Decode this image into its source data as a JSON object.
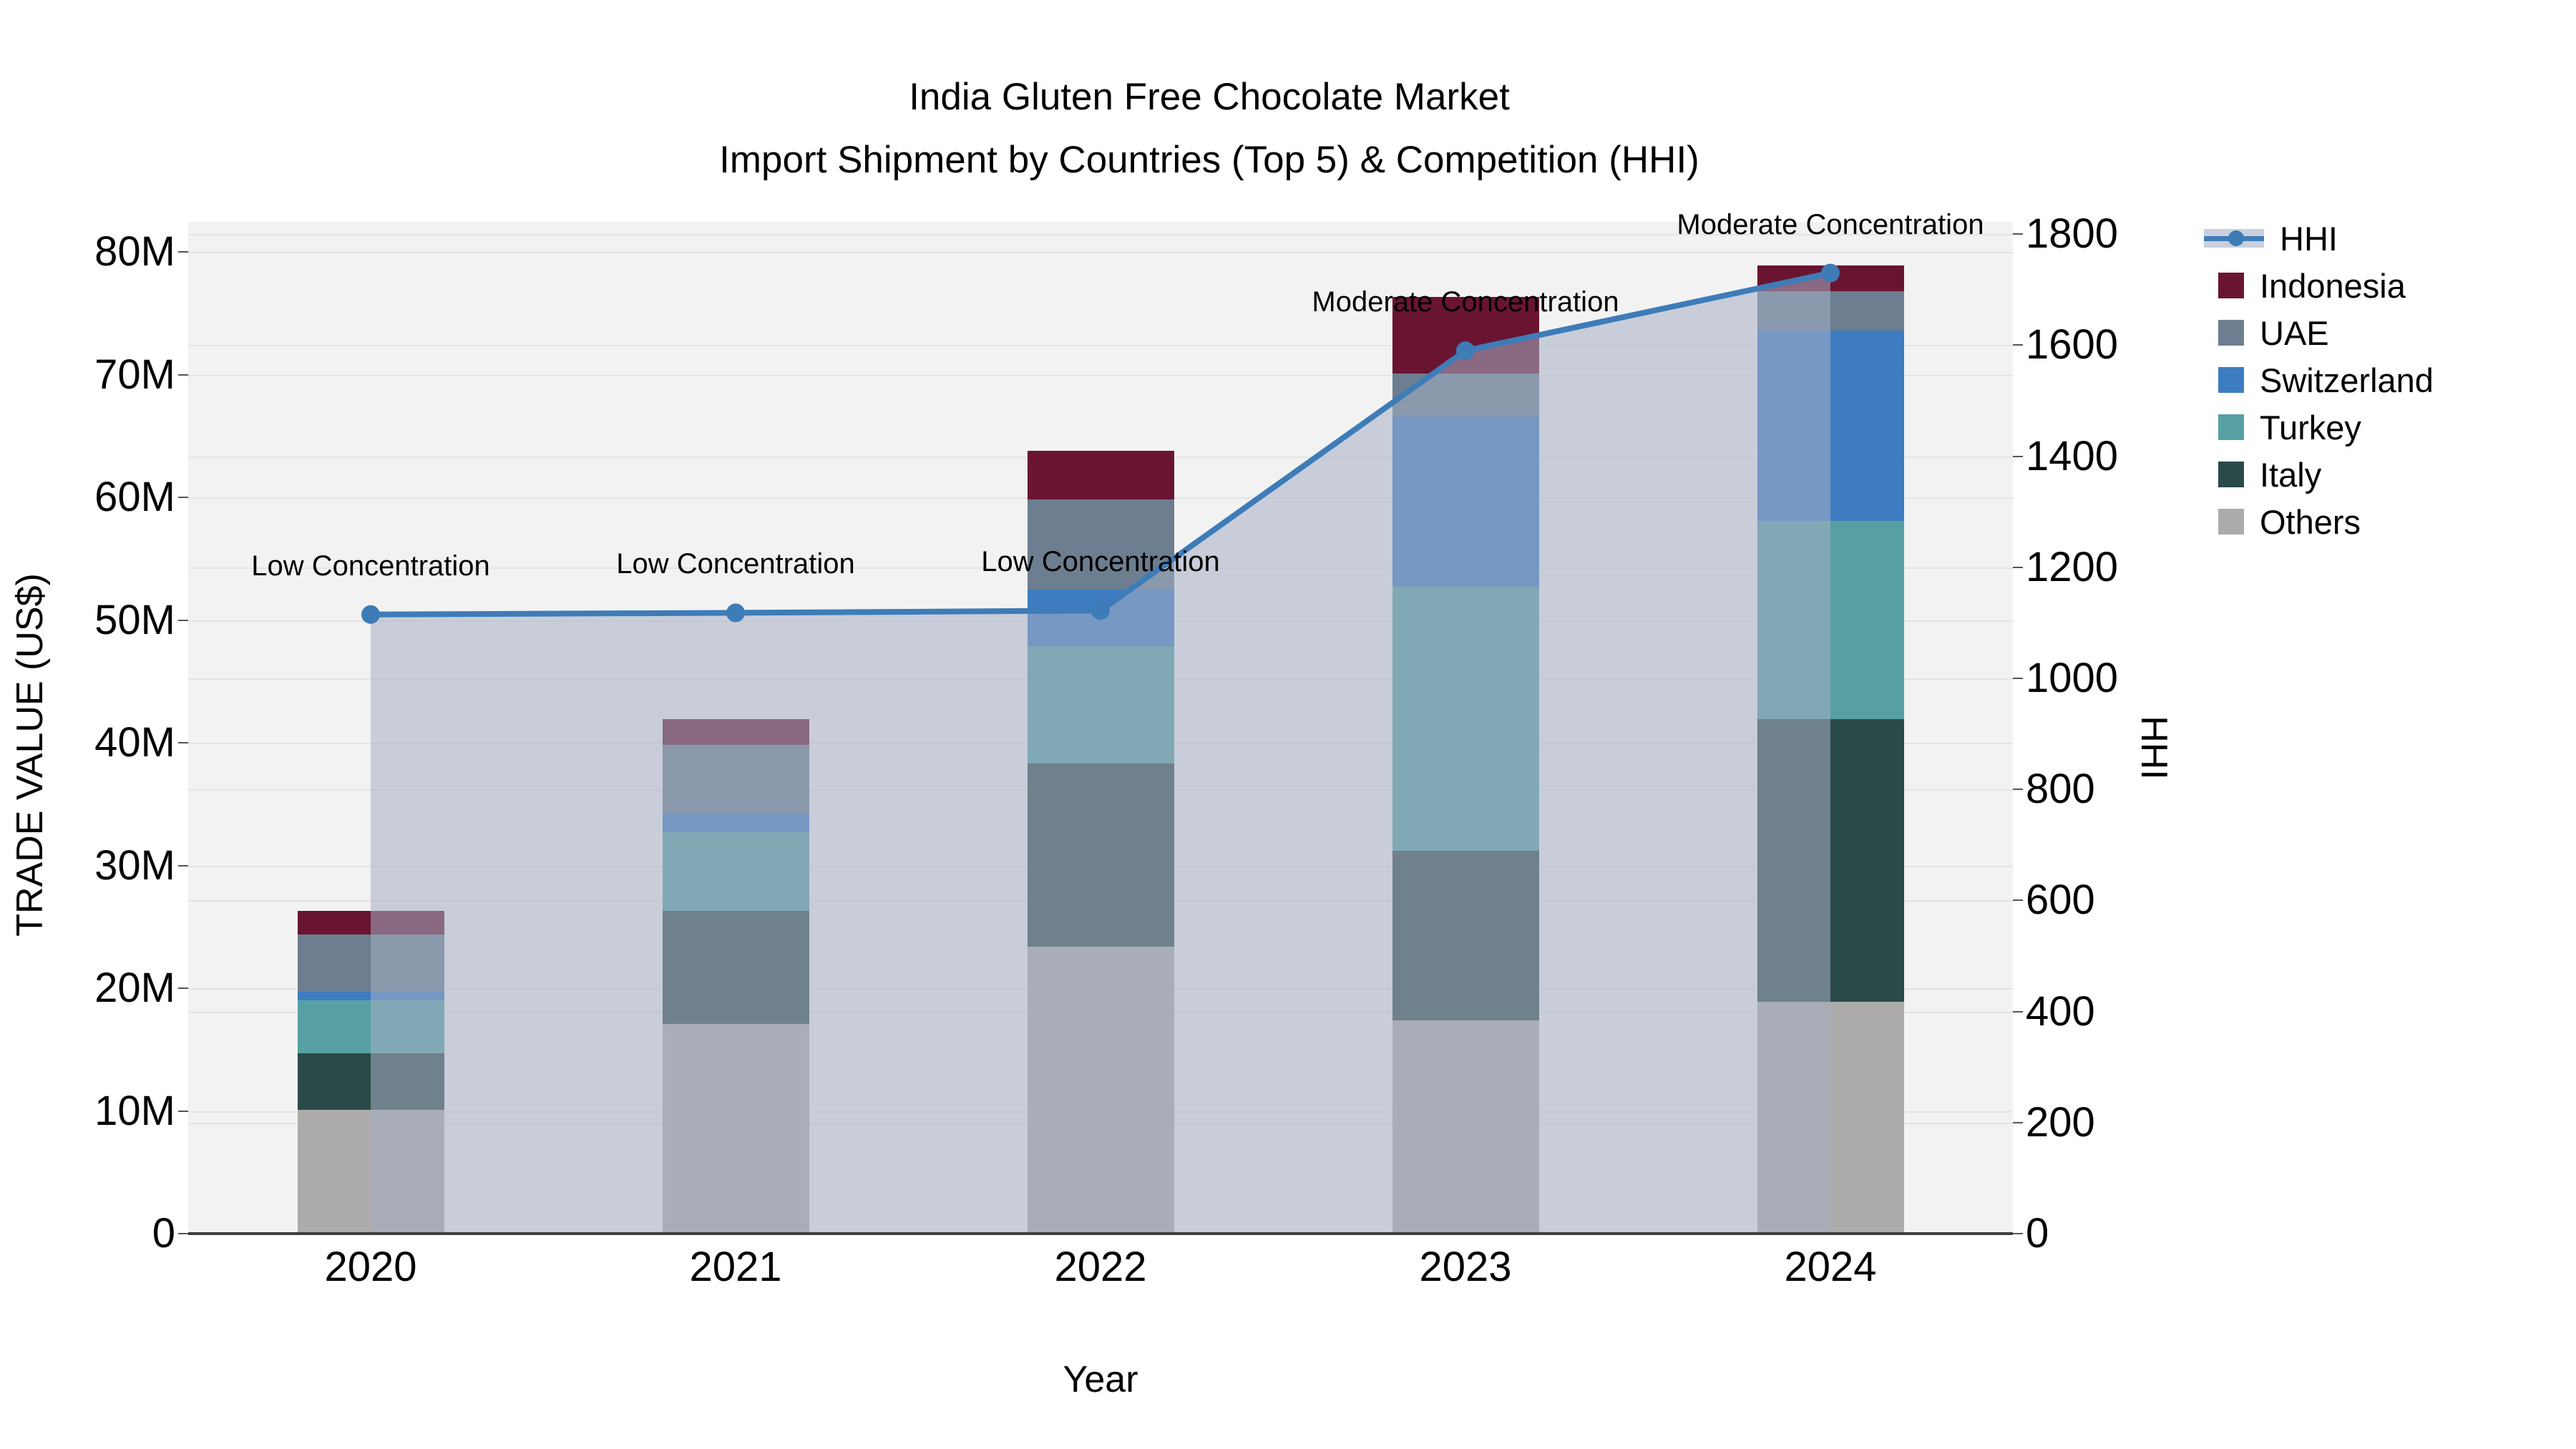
{
  "title": {
    "line1": "India Gluten Free Chocolate Market",
    "line2": "Import Shipment by Countries (Top 5) & Competition (HHI)"
  },
  "colors": {
    "hhi_line": "#3e7cb8",
    "hhi_marker": "#3e7cb8",
    "area_fill": "rgba(165,174,196,0.55)",
    "legend_band": "#c9cfdc",
    "indonesia": "#691531",
    "uae": "#6c7e8f",
    "switzerland": "#3d7cc1",
    "turkey": "#56a0a3",
    "italy": "#2a4a48",
    "others": "#acaba9",
    "plot_bg": "#f2f2f2",
    "grid": "#e4e4e7",
    "spine": "#3f3f3f"
  },
  "legend": {
    "items": [
      {
        "label": "HHI",
        "type": "line",
        "color": "#3e7cb8"
      },
      {
        "label": "Indonesia",
        "type": "box",
        "color": "#691531"
      },
      {
        "label": "UAE",
        "type": "box",
        "color": "#6c7e8f"
      },
      {
        "label": "Switzerland",
        "type": "box",
        "color": "#3d7cc1"
      },
      {
        "label": "Turkey",
        "type": "box",
        "color": "#56a0a3"
      },
      {
        "label": "Italy",
        "type": "box",
        "color": "#2a4a48"
      },
      {
        "label": "Others",
        "type": "box",
        "color": "#acaba9"
      }
    ]
  },
  "chart_data": {
    "type": "stacked-bar+line",
    "title": "India Gluten Free Chocolate Market — Import Shipment by Countries (Top 5) & Competition (HHI)",
    "categories": [
      "2020",
      "2021",
      "2022",
      "2023",
      "2024"
    ],
    "stack_order_bottom_to_top": [
      "Others",
      "Italy",
      "Turkey",
      "Switzerland",
      "UAE",
      "Indonesia"
    ],
    "value_unit": "million US$",
    "series": [
      {
        "name": "Indonesia",
        "color_key": "indonesia",
        "values": [
          1.9,
          2.1,
          4.0,
          6.2,
          2.1
        ]
      },
      {
        "name": "UAE",
        "color_key": "uae",
        "values": [
          4.7,
          5.6,
          7.3,
          3.5,
          3.2
        ]
      },
      {
        "name": "Switzerland",
        "color_key": "switzerland",
        "values": [
          0.7,
          1.5,
          4.6,
          13.9,
          15.5
        ]
      },
      {
        "name": "Turkey",
        "color_key": "turkey",
        "values": [
          4.3,
          6.4,
          9.6,
          21.5,
          16.2
        ]
      },
      {
        "name": "Italy",
        "color_key": "italy",
        "values": [
          4.6,
          9.2,
          14.9,
          13.8,
          23.0
        ]
      },
      {
        "name": "Others",
        "color_key": "others",
        "values": [
          10.1,
          17.1,
          23.4,
          17.4,
          18.9
        ]
      }
    ],
    "bar_totals_million": [
      26.3,
      41.9,
      63.8,
      76.3,
      78.9
    ],
    "line_series": {
      "name": "HHI",
      "axis": "right",
      "values": [
        1115,
        1118,
        1122,
        1590,
        1730
      ]
    },
    "annotations": [
      "Low Concentration",
      "Low Concentration",
      "Low Concentration",
      "Moderate Concentration",
      "Moderate Concentration"
    ],
    "left_axis": {
      "label": "TRADE VALUE (US$)",
      "tick_values": [
        0,
        10,
        20,
        30,
        40,
        50,
        60,
        70,
        80
      ],
      "tick_labels": [
        "0",
        "10M",
        "20M",
        "30M",
        "40M",
        "50M",
        "60M",
        "70M",
        "80M"
      ],
      "range_million": [
        0,
        82.5
      ]
    },
    "right_axis": {
      "label": "HHI",
      "tick_values": [
        0,
        200,
        400,
        600,
        800,
        1000,
        1200,
        1400,
        1600,
        1800
      ],
      "tick_labels": [
        "0",
        "200",
        "400",
        "600",
        "800",
        "1000",
        "1200",
        "1400",
        "1600",
        "1800"
      ],
      "range": [
        0,
        1822
      ]
    },
    "x_axis": {
      "label": "Year"
    },
    "grid": true,
    "legend_position": "right"
  }
}
